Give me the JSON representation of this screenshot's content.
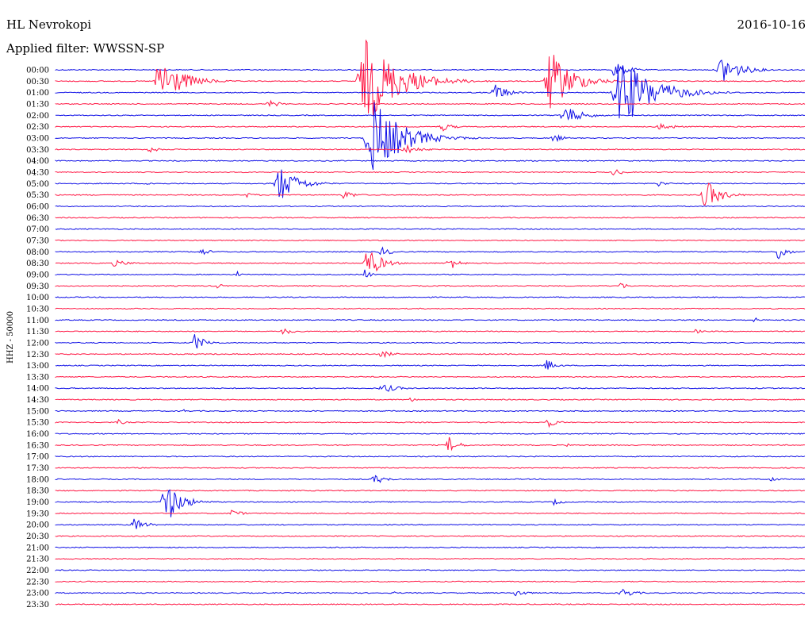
{
  "header": {
    "station": "HL Nevrokopi",
    "date": "2016-10-16",
    "filter": "Applied filter: WWSSN-SP"
  },
  "colors": {
    "even": "#1010e6",
    "odd": "#ff1744"
  },
  "chart_data": {
    "type": "line",
    "title": "",
    "ylabel": "HHZ - 50000",
    "time_labels": [
      "00:00",
      "00:30",
      "01:00",
      "01:30",
      "02:00",
      "02:30",
      "03:00",
      "03:30",
      "04:00",
      "04:30",
      "05:00",
      "05:30",
      "06:00",
      "06:30",
      "07:00",
      "07:30",
      "08:00",
      "08:30",
      "09:00",
      "09:30",
      "10:00",
      "10:30",
      "11:00",
      "11:30",
      "12:00",
      "12:30",
      "13:00",
      "13:30",
      "14:00",
      "14:30",
      "15:00",
      "15:30",
      "16:00",
      "16:30",
      "17:00",
      "17:30",
      "18:00",
      "18:30",
      "19:00",
      "19:30",
      "20:00",
      "20:30",
      "21:00",
      "21:30",
      "22:00",
      "22:30",
      "23:00",
      "23:30"
    ],
    "trace_minutes": 30,
    "events": [
      {
        "trace": 0,
        "start": 0.74,
        "dur": 0.07,
        "amp": 12,
        "side": "u"
      },
      {
        "trace": 0,
        "start": 0.88,
        "dur": 0.1,
        "amp": 20,
        "side": "u"
      },
      {
        "trace": 1,
        "start": 0.13,
        "dur": 0.12,
        "amp": 32
      },
      {
        "trace": 1,
        "start": 0.4,
        "dur": 0.18,
        "amp": 55
      },
      {
        "trace": 1,
        "start": 0.65,
        "dur": 0.12,
        "amp": 40
      },
      {
        "trace": 2,
        "start": 0.58,
        "dur": 0.07,
        "amp": 12
      },
      {
        "trace": 2,
        "start": 0.74,
        "dur": 0.18,
        "amp": 45
      },
      {
        "trace": 3,
        "start": 0.28,
        "dur": 0.06,
        "amp": 5
      },
      {
        "trace": 4,
        "start": 0.67,
        "dur": 0.1,
        "amp": 12
      },
      {
        "trace": 5,
        "start": 0.51,
        "dur": 0.06,
        "amp": 6
      },
      {
        "trace": 5,
        "start": 0.8,
        "dur": 0.08,
        "amp": 5
      },
      {
        "trace": 6,
        "start": 0.41,
        "dur": 0.16,
        "amp": 50
      },
      {
        "trace": 6,
        "start": 0.66,
        "dur": 0.05,
        "amp": 6
      },
      {
        "trace": 7,
        "start": 0.12,
        "dur": 0.06,
        "amp": 4
      },
      {
        "trace": 7,
        "start": 0.46,
        "dur": 0.08,
        "amp": 6
      },
      {
        "trace": 9,
        "start": 0.74,
        "dur": 0.05,
        "amp": 5
      },
      {
        "trace": 10,
        "start": 0.29,
        "dur": 0.1,
        "amp": 24
      },
      {
        "trace": 10,
        "start": 0.12,
        "dur": 0.04,
        "amp": 3
      },
      {
        "trace": 10,
        "start": 0.8,
        "dur": 0.05,
        "amp": 4
      },
      {
        "trace": 11,
        "start": 0.38,
        "dur": 0.06,
        "amp": 6
      },
      {
        "trace": 11,
        "start": 0.86,
        "dur": 0.08,
        "amp": 20
      },
      {
        "trace": 11,
        "start": 0.25,
        "dur": 0.06,
        "amp": 3
      },
      {
        "trace": 16,
        "start": 0.19,
        "dur": 0.05,
        "amp": 5
      },
      {
        "trace": 16,
        "start": 0.43,
        "dur": 0.06,
        "amp": 6
      },
      {
        "trace": 16,
        "start": 0.96,
        "dur": 0.04,
        "amp": 14
      },
      {
        "trace": 17,
        "start": 0.41,
        "dur": 0.07,
        "amp": 22
      },
      {
        "trace": 17,
        "start": 0.52,
        "dur": 0.05,
        "amp": 10
      },
      {
        "trace": 17,
        "start": 0.07,
        "dur": 0.1,
        "amp": 4
      },
      {
        "trace": 18,
        "start": 0.41,
        "dur": 0.03,
        "amp": 8
      },
      {
        "trace": 18,
        "start": 0.24,
        "dur": 0.02,
        "amp": 5
      },
      {
        "trace": 19,
        "start": 0.21,
        "dur": 0.04,
        "amp": 4
      },
      {
        "trace": 19,
        "start": 0.75,
        "dur": 0.04,
        "amp": 5
      },
      {
        "trace": 22,
        "start": 0.93,
        "dur": 0.02,
        "amp": 5
      },
      {
        "trace": 23,
        "start": 0.3,
        "dur": 0.05,
        "amp": 5
      },
      {
        "trace": 23,
        "start": 0.85,
        "dur": 0.04,
        "amp": 3
      },
      {
        "trace": 24,
        "start": 0.18,
        "dur": 0.06,
        "amp": 12
      },
      {
        "trace": 25,
        "start": 0.43,
        "dur": 0.06,
        "amp": 5
      },
      {
        "trace": 26,
        "start": 0.65,
        "dur": 0.05,
        "amp": 8
      },
      {
        "trace": 28,
        "start": 0.43,
        "dur": 0.08,
        "amp": 6
      },
      {
        "trace": 29,
        "start": 0.47,
        "dur": 0.04,
        "amp": 3
      },
      {
        "trace": 30,
        "start": 0.17,
        "dur": 0.02,
        "amp": 4
      },
      {
        "trace": 31,
        "start": 0.08,
        "dur": 0.04,
        "amp": 4
      },
      {
        "trace": 31,
        "start": 0.65,
        "dur": 0.05,
        "amp": 8
      },
      {
        "trace": 33,
        "start": 0.52,
        "dur": 0.05,
        "amp": 11
      },
      {
        "trace": 33,
        "start": 0.68,
        "dur": 0.02,
        "amp": 3
      },
      {
        "trace": 36,
        "start": 0.42,
        "dur": 0.06,
        "amp": 7
      },
      {
        "trace": 36,
        "start": 0.95,
        "dur": 0.04,
        "amp": 4
      },
      {
        "trace": 38,
        "start": 0.14,
        "dur": 0.08,
        "amp": 30
      },
      {
        "trace": 38,
        "start": 0.66,
        "dur": 0.05,
        "amp": 4
      },
      {
        "trace": 39,
        "start": 0.23,
        "dur": 0.06,
        "amp": 5
      },
      {
        "trace": 40,
        "start": 0.1,
        "dur": 0.06,
        "amp": 9
      },
      {
        "trace": 46,
        "start": 0.61,
        "dur": 0.05,
        "amp": 6
      },
      {
        "trace": 46,
        "start": 0.75,
        "dur": 0.07,
        "amp": 6
      },
      {
        "trace": 46,
        "start": 0.45,
        "dur": 0.01,
        "amp": 3
      }
    ]
  }
}
